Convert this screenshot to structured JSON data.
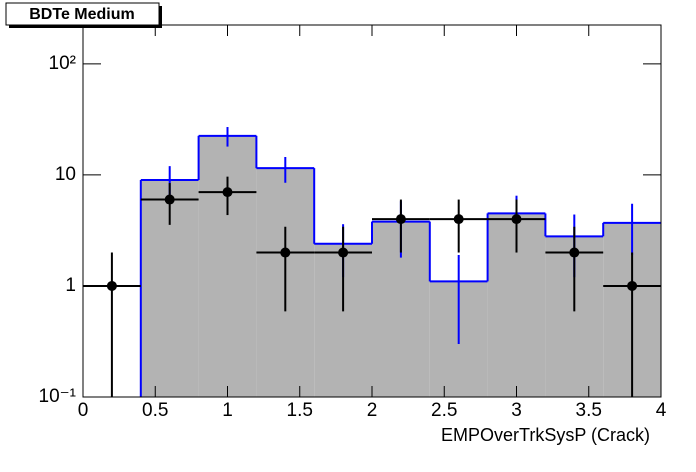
{
  "chart_data": {
    "type": "histogram",
    "title": "BDTe Medium",
    "x_label": "EMPOverTrkSysP (Crack)",
    "log_y": true,
    "xlim": [
      0,
      4
    ],
    "xticks": [
      0,
      0.5,
      1,
      1.5,
      2,
      2.5,
      3,
      3.5,
      4
    ],
    "ylim": [
      0.1,
      224
    ],
    "yticks": [
      {
        "value": 0.1,
        "label": "10⁻¹"
      },
      1,
      10,
      {
        "value": 100,
        "label": "10²"
      }
    ],
    "histogram": {
      "color": "#0000ff",
      "fill": "#b3b3b3",
      "bins": [
        0,
        0.4,
        0.8,
        1.2,
        1.6,
        2.0,
        2.4,
        2.8,
        3.2,
        3.6,
        4.0
      ],
      "values": [
        0,
        9,
        22.5,
        11.5,
        2.4,
        3.8,
        1.1,
        4.5,
        2.8,
        3.7
      ],
      "errors": [
        0,
        3,
        4.5,
        3,
        1.2,
        2,
        0.8,
        2,
        1.6,
        1.8
      ]
    },
    "points": {
      "color": "#000000",
      "x": [
        0.2,
        0.6,
        1.0,
        1.4,
        1.8,
        2.2,
        2.6,
        3.0,
        3.4,
        3.8
      ],
      "values": [
        1,
        6,
        7,
        2,
        2,
        4,
        4,
        4,
        2,
        1
      ],
      "errors": [
        1,
        2.45,
        2.65,
        1.41,
        1.41,
        2,
        2,
        2,
        1.41,
        1
      ]
    }
  }
}
